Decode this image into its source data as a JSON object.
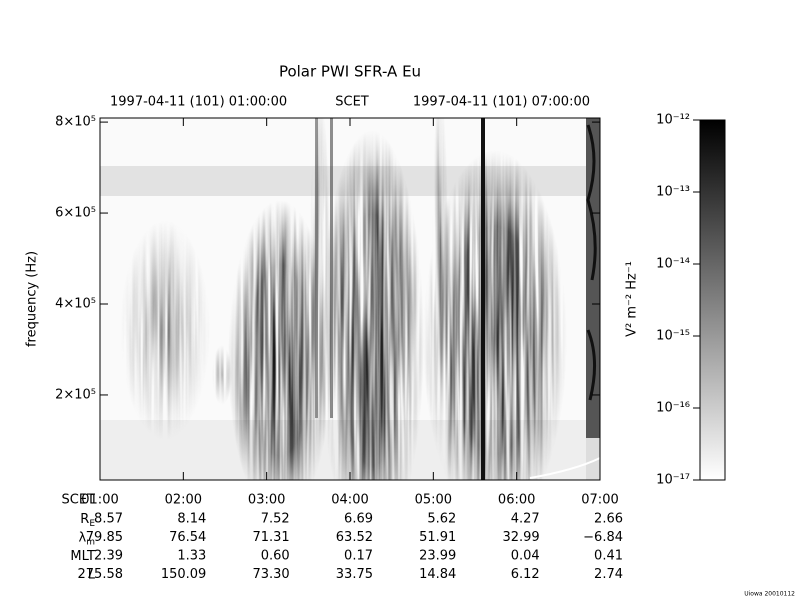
{
  "chart_data": {
    "type": "spectrogram",
    "title": "Polar PWI SFR-A Eu",
    "top_labels": [
      "1997-04-11 (101) 01:00:00",
      "SCET",
      "1997-04-11 (101) 07:00:00"
    ],
    "y_label": "frequency (Hz)",
    "xlim": [
      1,
      7
    ],
    "xticks": [
      {
        "value": 1,
        "label": "01:00"
      },
      {
        "value": 2,
        "label": "02:00"
      },
      {
        "value": 3,
        "label": "03:00"
      },
      {
        "value": 4,
        "label": "04:00"
      },
      {
        "value": 5,
        "label": "05:00"
      },
      {
        "value": 6,
        "label": "06:00"
      },
      {
        "value": 7,
        "label": "07:00"
      }
    ],
    "ylim": [
      13000,
      809000
    ],
    "yticks": [
      {
        "value": 200000,
        "label": "2×10⁵"
      },
      {
        "value": 400000,
        "label": "4×10⁵"
      },
      {
        "value": 600000,
        "label": "6×10⁵"
      },
      {
        "value": 800000,
        "label": "8×10⁵"
      }
    ],
    "colorbar": {
      "label": "V² m⁻² Hz⁻¹",
      "log": true,
      "lim": [
        1e-17,
        1e-12
      ],
      "colors": [
        "#ffffff",
        "#000000"
      ],
      "ticks": [
        {
          "value": 1e-12,
          "label": "10⁻¹²"
        },
        {
          "value": 1e-13,
          "label": "10⁻¹³"
        },
        {
          "value": 1e-14,
          "label": "10⁻¹⁴"
        },
        {
          "value": 1e-15,
          "label": "10⁻¹⁵"
        },
        {
          "value": 1e-16,
          "label": "10⁻¹⁶"
        },
        {
          "value": 1e-17,
          "label": "10⁻¹⁷"
        }
      ]
    },
    "ephemeris": {
      "header": "SCET",
      "rows": [
        {
          "label": "R",
          "sub": "E",
          "values": [
            "8.57",
            "8.14",
            "7.52",
            "6.69",
            "5.62",
            "4.27",
            "2.66"
          ]
        },
        {
          "label": "λ",
          "sub": "m",
          "values": [
            "79.85",
            "76.54",
            "71.31",
            "63.52",
            "51.91",
            "32.99",
            "−6.84"
          ]
        },
        {
          "label": "MLT",
          "values": [
            "2.39",
            "1.33",
            "0.60",
            "0.17",
            "23.99",
            "0.04",
            "0.41"
          ]
        },
        {
          "label": "L",
          "values": [
            "275.58",
            "150.09",
            "73.30",
            "33.75",
            "14.84",
            "6.12",
            "2.74"
          ]
        }
      ]
    },
    "footer": "Uiowa 20010112"
  }
}
